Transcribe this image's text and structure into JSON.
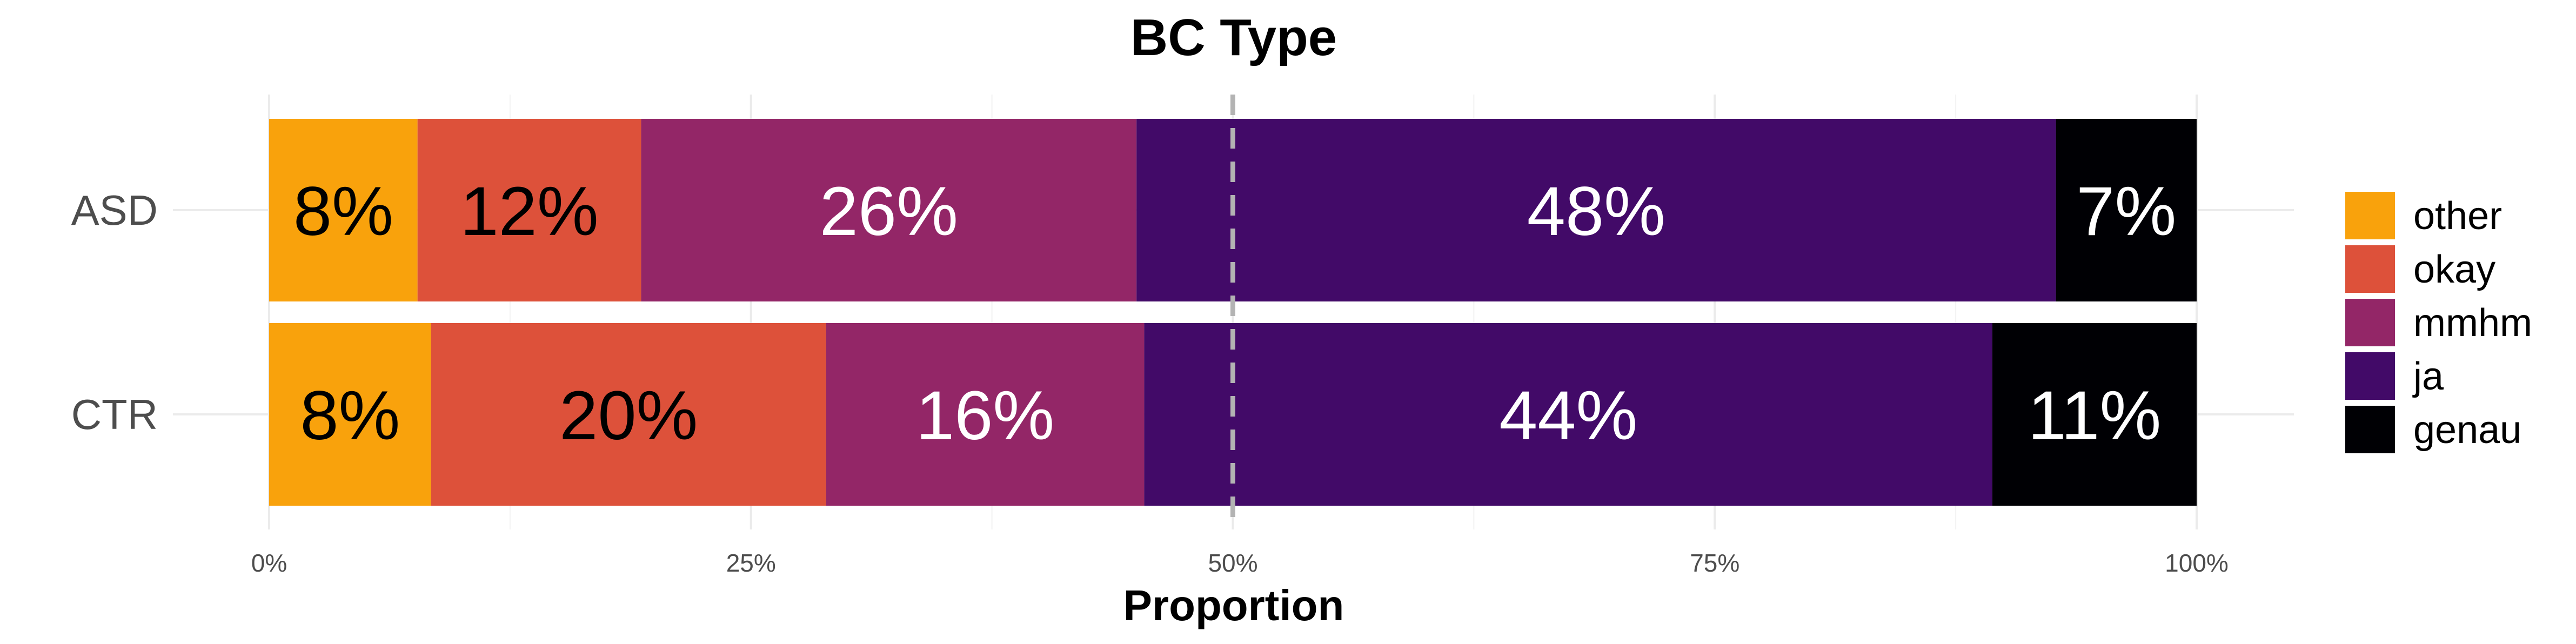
{
  "chart_data": {
    "type": "bar",
    "orientation": "horizontal",
    "stacked": true,
    "title": "BC Type",
    "xlabel": "Proportion",
    "ylabel": "",
    "xlim": [
      0,
      1
    ],
    "x_ticks": [
      0,
      0.25,
      0.5,
      0.75,
      1.0
    ],
    "x_tick_labels": [
      "0%",
      "25%",
      "50%",
      "75%",
      "100%"
    ],
    "reference_line": 0.5,
    "grid": true,
    "legend_position": "right",
    "categories": [
      "ASD",
      "CTR"
    ],
    "series": [
      {
        "name": "other",
        "color": "#F9A20C",
        "label_color": "#000000",
        "values": [
          0.077,
          0.084
        ],
        "labels": [
          "8%",
          "8%"
        ]
      },
      {
        "name": "okay",
        "color": "#DD513A",
        "label_color": "#000000",
        "values": [
          0.116,
          0.205
        ],
        "labels": [
          "12%",
          "20%"
        ]
      },
      {
        "name": "mmhm",
        "color": "#932667",
        "label_color": "#FFFFFF",
        "values": [
          0.257,
          0.165
        ],
        "labels": [
          "26%",
          "16%"
        ]
      },
      {
        "name": "ja",
        "color": "#420A68",
        "label_color": "#FFFFFF",
        "values": [
          0.477,
          0.44
        ],
        "labels": [
          "48%",
          "44%"
        ]
      },
      {
        "name": "genau",
        "color": "#000004",
        "label_color": "#FFFFFF",
        "values": [
          0.073,
          0.106
        ],
        "labels": [
          "7%",
          "11%"
        ]
      }
    ]
  }
}
